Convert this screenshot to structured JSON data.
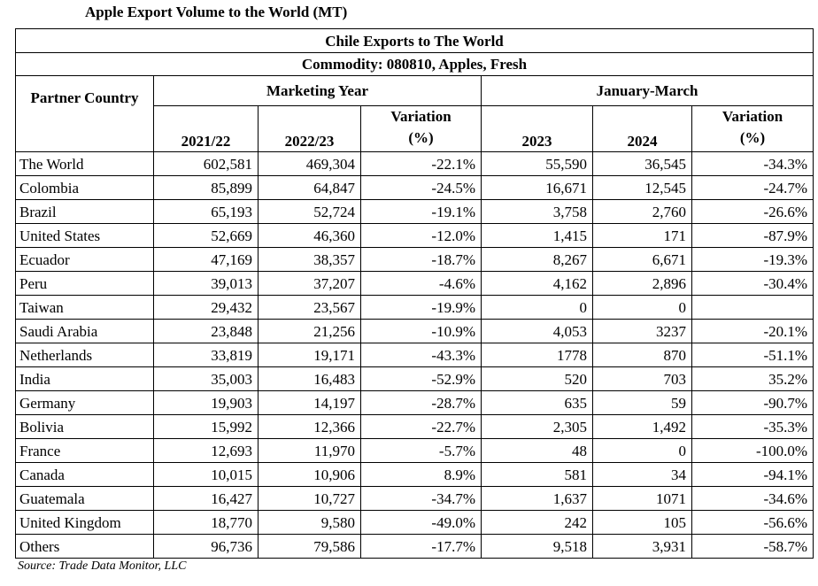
{
  "caption": "Apple Export Volume to the World (MT)",
  "table_title": "Chile Exports to The World",
  "commodity": "Commodity: 080810, Apples, Fresh",
  "headers": {
    "partner": "Partner Country",
    "marketing_year": "Marketing Year",
    "jan_march": "January-March",
    "y2122": "2021/22",
    "y2223": "2022/23",
    "variation_a": "Variation",
    "variation_b": "(%)",
    "y2023": "2023",
    "y2024": "2024"
  },
  "rows": [
    {
      "country": "The World",
      "y2122": "602,581",
      "y2223": "469,304",
      "var1": "-22.1%",
      "y2023": "55,590",
      "y2024": "36,545",
      "var2": "-34.3%"
    },
    {
      "country": "Colombia",
      "y2122": "85,899",
      "y2223": "64,847",
      "var1": "-24.5%",
      "y2023": "16,671",
      "y2024": "12,545",
      "var2": "-24.7%"
    },
    {
      "country": "Brazil",
      "y2122": "65,193",
      "y2223": "52,724",
      "var1": "-19.1%",
      "y2023": "3,758",
      "y2024": "2,760",
      "var2": "-26.6%"
    },
    {
      "country": "United States",
      "y2122": "52,669",
      "y2223": "46,360",
      "var1": "-12.0%",
      "y2023": "1,415",
      "y2024": "171",
      "var2": "-87.9%"
    },
    {
      "country": "Ecuador",
      "y2122": "47,169",
      "y2223": "38,357",
      "var1": "-18.7%",
      "y2023": "8,267",
      "y2024": "6,671",
      "var2": "-19.3%"
    },
    {
      "country": "Peru",
      "y2122": "39,013",
      "y2223": "37,207",
      "var1": "-4.6%",
      "y2023": "4,162",
      "y2024": "2,896",
      "var2": "-30.4%"
    },
    {
      "country": "Taiwan",
      "y2122": "29,432",
      "y2223": "23,567",
      "var1": "-19.9%",
      "y2023": "0",
      "y2024": "0",
      "var2": ""
    },
    {
      "country": "Saudi Arabia",
      "y2122": "23,848",
      "y2223": "21,256",
      "var1": "-10.9%",
      "y2023": "4,053",
      "y2024": "3237",
      "var2": "-20.1%"
    },
    {
      "country": "Netherlands",
      "y2122": "33,819",
      "y2223": "19,171",
      "var1": "-43.3%",
      "y2023": "1778",
      "y2024": "870",
      "var2": "-51.1%"
    },
    {
      "country": "India",
      "y2122": "35,003",
      "y2223": "16,483",
      "var1": "-52.9%",
      "y2023": "520",
      "y2024": "703",
      "var2": "35.2%"
    },
    {
      "country": "Germany",
      "y2122": "19,903",
      "y2223": "14,197",
      "var1": "-28.7%",
      "y2023": "635",
      "y2024": "59",
      "var2": "-90.7%"
    },
    {
      "country": "Bolivia",
      "y2122": "15,992",
      "y2223": "12,366",
      "var1": "-22.7%",
      "y2023": "2,305",
      "y2024": "1,492",
      "var2": "-35.3%"
    },
    {
      "country": "France",
      "y2122": "12,693",
      "y2223": "11,970",
      "var1": "-5.7%",
      "y2023": "48",
      "y2024": "0",
      "var2": "-100.0%"
    },
    {
      "country": "Canada",
      "y2122": "10,015",
      "y2223": "10,906",
      "var1": "8.9%",
      "y2023": "581",
      "y2024": "34",
      "var2": "-94.1%"
    },
    {
      "country": "Guatemala",
      "y2122": "16,427",
      "y2223": "10,727",
      "var1": "-34.7%",
      "y2023": "1,637",
      "y2024": "1071",
      "var2": "-34.6%"
    },
    {
      "country": "United Kingdom",
      "y2122": "18,770",
      "y2223": "9,580",
      "var1": "-49.0%",
      "y2023": "242",
      "y2024": "105",
      "var2": "-56.6%"
    },
    {
      "country": "Others",
      "y2122": "96,736",
      "y2223": "79,586",
      "var1": "-17.7%",
      "y2023": "9,518",
      "y2024": "3,931",
      "var2": "-58.7%"
    }
  ],
  "source": "Source: Trade Data Monitor, LLC"
}
